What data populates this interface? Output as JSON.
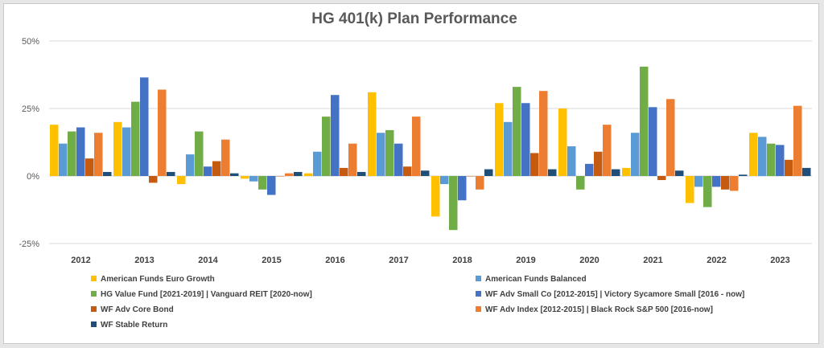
{
  "chart_data": {
    "type": "bar",
    "title": "HG 401(k) Plan Performance",
    "xlabel": "",
    "ylabel": "",
    "ylim": [
      -25,
      50
    ],
    "yticks": [
      -25,
      0,
      25,
      50
    ],
    "ytick_labels": [
      "-25%",
      "0%",
      "25%",
      "50%"
    ],
    "grid": true,
    "legend_position": "bottom",
    "categories": [
      "2012",
      "2013",
      "2014",
      "2015",
      "2016",
      "2017",
      "2018",
      "2019",
      "2020",
      "2021",
      "2022",
      "2023"
    ],
    "series": [
      {
        "name": "American Funds Euro Growth",
        "color": "#ffc000",
        "values": [
          19,
          20,
          -3,
          -1,
          1,
          31,
          -15,
          27,
          25,
          3,
          -10,
          16
        ]
      },
      {
        "name": "American Funds Balanced",
        "color": "#5b9bd5",
        "values": [
          12,
          18,
          8,
          -2,
          9,
          16,
          -3,
          20,
          11,
          16,
          -4,
          14.5
        ]
      },
      {
        "name": "HG Value Fund [2021-2019] | Vanguard REIT [2020-now]",
        "color": "#70ad47",
        "values": [
          16.5,
          27.5,
          16.5,
          -5,
          22,
          17,
          -20,
          33,
          -5,
          40.5,
          -11.5,
          12
        ]
      },
      {
        "name": "WF Adv Small Co [2012-2015] | Victory Sycamore Small [2016 - now]",
        "color": "#4472c4",
        "values": [
          18,
          36.5,
          3.5,
          -7,
          30,
          12,
          -9,
          27,
          4.5,
          25.5,
          -4,
          11.5
        ]
      },
      {
        "name": "WF Adv Core Bond",
        "color": "#c55a11",
        "values": [
          6.5,
          -2.5,
          5.5,
          0,
          3,
          3.5,
          0,
          8.5,
          9,
          -1.5,
          -5,
          6
        ]
      },
      {
        "name": "WF Adv Index [2012-2015] | Black Rock S&P 500 [2016-now]",
        "color": "#ed7d31",
        "values": [
          16,
          32,
          13.5,
          1,
          12,
          22,
          -5,
          31.5,
          19,
          28.5,
          -5.5,
          26
        ]
      },
      {
        "name": "WF Stable Return",
        "color": "#1f4e79",
        "values": [
          1.5,
          1.5,
          1,
          1.5,
          1.5,
          2,
          2.5,
          2.5,
          2.5,
          2,
          0.5,
          3
        ]
      }
    ]
  }
}
